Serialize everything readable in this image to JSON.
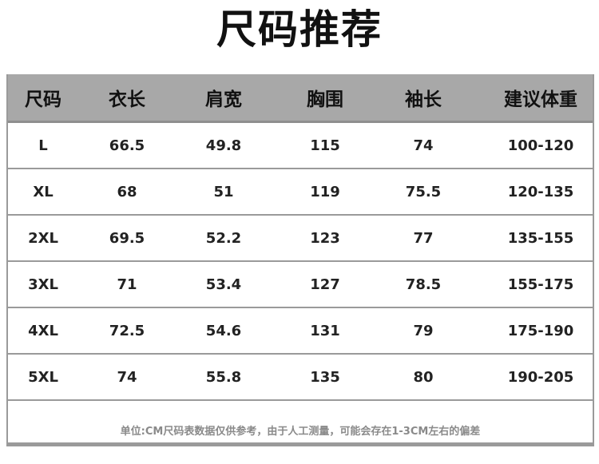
{
  "title": "尺码推荐",
  "table": {
    "headers": [
      "尺码",
      "衣长",
      "肩宽",
      "胸围",
      "袖长",
      "建议体重"
    ],
    "rows": [
      [
        "L",
        "66.5",
        "49.8",
        "115",
        "74",
        "100-120"
      ],
      [
        "XL",
        "68",
        "51",
        "119",
        "75.5",
        "120-135"
      ],
      [
        "2XL",
        "69.5",
        "52.2",
        "123",
        "77",
        "135-155"
      ],
      [
        "3XL",
        "71",
        "53.4",
        "127",
        "78.5",
        "155-175"
      ],
      [
        "4XL",
        "72.5",
        "54.6",
        "131",
        "79",
        "175-190"
      ],
      [
        "5XL",
        "74",
        "55.8",
        "135",
        "80",
        "190-205"
      ]
    ]
  },
  "note": "单位:CM尺码表数据仅供参考，由于人工测量，可能会存在1-3CM左右的偏差",
  "colors": {
    "header_bg": "#a8a8a8",
    "border": "#9a9a9a",
    "note": "#8a8a8a"
  }
}
